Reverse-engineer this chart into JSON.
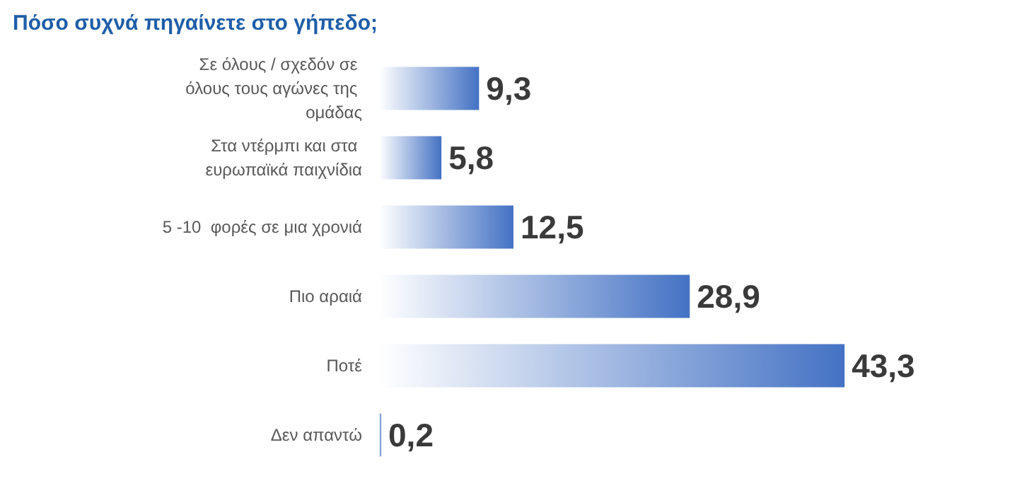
{
  "chart_data": {
    "type": "bar",
    "orientation": "horizontal",
    "title": "Πόσο συχνά πηγαίνετε στο γήπεδο;",
    "categories": [
      "Σε όλους / σχεδόν σε όλους τους αγώνες της ομάδας",
      "Στα ντέρμπι και στα ευρωπαϊκά παιχνίδια",
      "5 -10  φορές σε μια χρονιά",
      "Πιο αραιά",
      "Ποτέ",
      "Δεν απαντώ"
    ],
    "values": [
      9.3,
      5.8,
      12.5,
      28.9,
      43.3,
      0.2
    ],
    "value_labels": [
      "9,3",
      "5,8",
      "12,5",
      "28,9",
      "43,3",
      "0,2"
    ],
    "color": "#4472c4"
  }
}
